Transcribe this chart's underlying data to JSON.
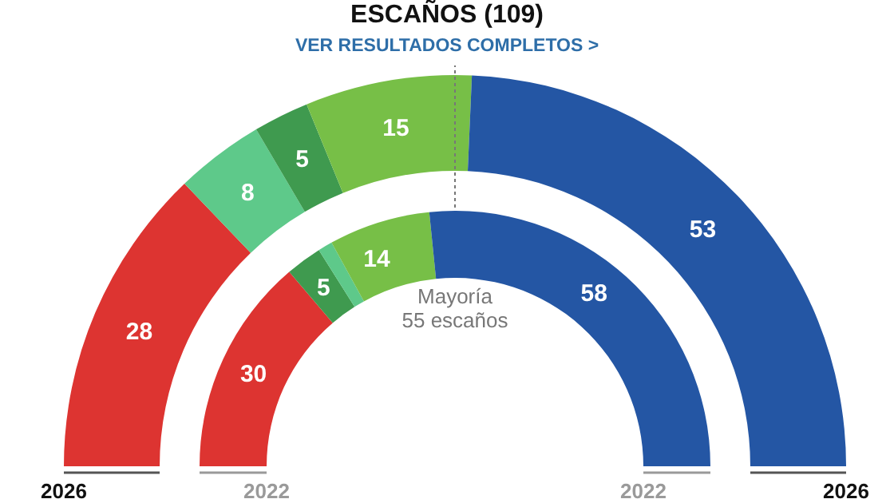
{
  "chart_data": [
    {
      "type": "donut",
      "title": "ESCAÑOS (109)",
      "subtitle": "VER RESULTADOS COMPLETOS >",
      "xlabel": "2026",
      "categories": [
        null,
        null,
        null,
        null,
        null
      ],
      "values": [
        28,
        8,
        5,
        15,
        53
      ],
      "colors": [
        "#dd3431",
        "#5ec98a",
        "#3f9a4f",
        "#77bf47",
        "#2456a4"
      ],
      "data_labels": true,
      "annotations": [
        "Mayoría 55 escaños"
      ]
    },
    {
      "type": "donut",
      "xlabel": "2022",
      "categories": [
        null,
        null,
        null,
        null,
        null
      ],
      "values": [
        30,
        5,
        2,
        14,
        58
      ],
      "colors": [
        "#dd3431",
        "#3f9a4f",
        "#5ec98a",
        "#77bf47",
        "#2456a4"
      ],
      "value_labels": [
        "30",
        "5",
        null,
        "14",
        "58"
      ]
    }
  ]
}
